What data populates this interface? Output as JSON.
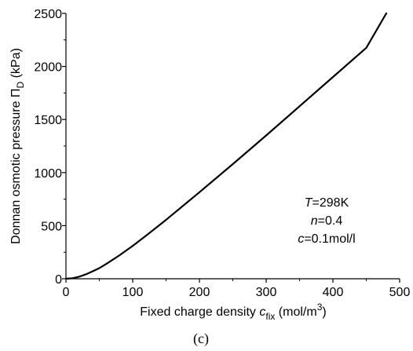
{
  "chart_data": {
    "type": "line",
    "xlabel": {
      "prefix": "Fixed charge density ",
      "var": "c",
      "sub": "fix",
      "unit_pre": " (mol/m",
      "unit_sup": "3",
      "unit_post": ")"
    },
    "ylabel": {
      "prefix": "Donnan osmotic pressure ",
      "var": "Π",
      "sub": "D",
      "unit": " (kPa)"
    },
    "xlim": [
      0,
      500
    ],
    "ylim": [
      0,
      2500
    ],
    "x_ticks": [
      0,
      100,
      200,
      300,
      400,
      500
    ],
    "y_ticks": [
      0,
      500,
      1000,
      1500,
      2000,
      2500
    ],
    "minor_x_ticks": [
      50,
      150,
      250,
      350,
      450
    ],
    "minor_y_ticks": [
      250,
      750,
      1250,
      1750,
      2250
    ],
    "grid": false,
    "series": [
      {
        "color": "#000000",
        "x": [
          0,
          10,
          20,
          30,
          40,
          50,
          60,
          80,
          100,
          120,
          150,
          200,
          250,
          300,
          350,
          400,
          450,
          480
        ],
        "y": [
          0,
          5,
          20,
          42,
          70,
          100,
          138,
          220,
          310,
          406,
          555,
          815,
          1080,
          1350,
          1625,
          1900,
          2175,
          2500
        ]
      }
    ],
    "annotations": [
      {
        "var": "T",
        "text": "=298K"
      },
      {
        "var": "n",
        "text": "=0.4"
      },
      {
        "var": "c",
        "text": "=0.1mol/l"
      }
    ]
  },
  "caption": "(c)"
}
